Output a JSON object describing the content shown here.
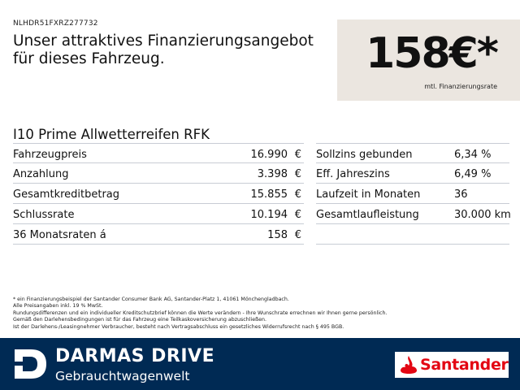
{
  "vin": "NLHDR51FXRZ277732",
  "headline": {
    "line1": "Unser attraktives Finanzierungsangebot",
    "line2": "für dieses Fahrzeug."
  },
  "rate": {
    "value": "158€*",
    "label": "mtl. Finanzierungsrate"
  },
  "model": "I10 Prime Allwetterreifen RFK",
  "left_table": [
    {
      "label": "Fahrzeugpreis",
      "value": "16.990",
      "currency": "€"
    },
    {
      "label": "Anzahlung",
      "value": "3.398",
      "currency": "€"
    },
    {
      "label": "Gesamtkreditbetrag",
      "value": "15.855",
      "currency": "€"
    },
    {
      "label": "Schlussrate",
      "value": "10.194",
      "currency": "€"
    },
    {
      "label": "36 Monatsraten á",
      "value": "158",
      "currency": "€"
    }
  ],
  "right_table": [
    {
      "label": "Sollzins gebunden",
      "value": "6,34 %"
    },
    {
      "label": "Eff. Jahreszins",
      "value": "6,49 %"
    },
    {
      "label": "Laufzeit in Monaten",
      "value": "36"
    },
    {
      "label": "Gesamtlaufleistung",
      "value": "30.000 km"
    }
  ],
  "footnote": [
    "* ein Finanzierungsbeispiel der Santander Consumer Bank AG, Santander-Platz 1, 41061 Mönchengladbach.",
    "Alle Preisangaben inkl. 19 % MwSt.",
    "Rundungsdifferenzen und ein individueller Kreditschutzbrief können die Werte verändern - Ihre Wunschrate errechnen wir Ihnen gerne persönlich.",
    "Gemäß den Darlehensbedingungen ist für das Fahrzeug eine Teilkaskoversicherung abzuschließen.",
    "Ist der Darlehens-/Leasingnehmer Verbraucher, besteht nach Vertragsabschluss ein gesetzliches Widerrufsrecht nach § 495 BGB."
  ],
  "footer": {
    "brand": "DARMAS DRIVE",
    "brand_sub": "Gebrauchtwagenwelt",
    "partner": "Santander",
    "brand_color": "#002a54",
    "partner_color": "#e30613"
  }
}
